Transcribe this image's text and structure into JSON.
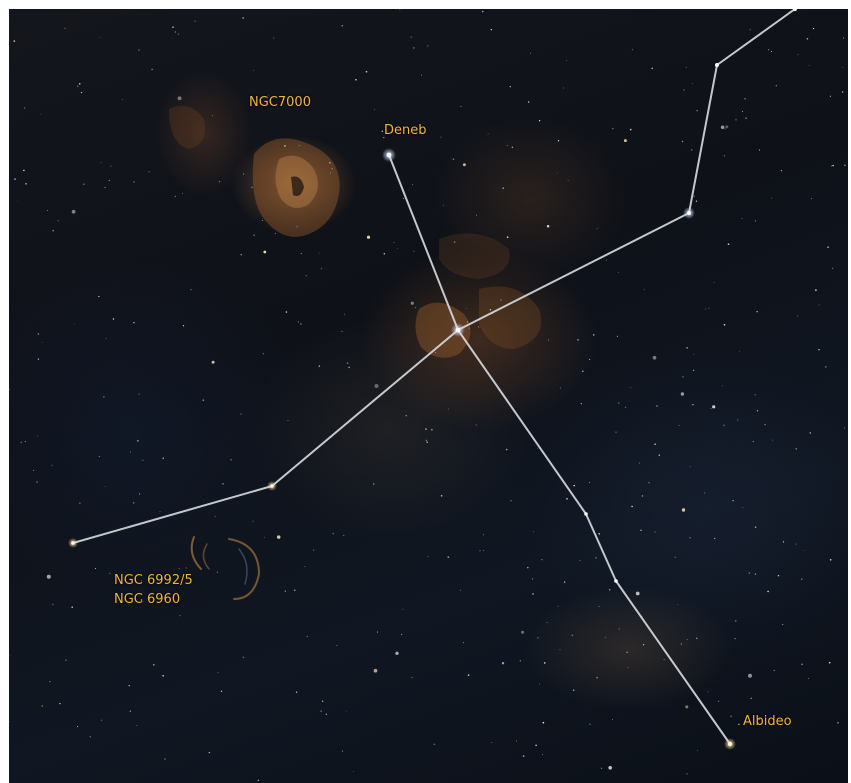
{
  "labels": {
    "ngc7000": "NGC7000",
    "deneb": "Deneb",
    "ngc6992": "NGC 6992/5",
    "ngc6960": "NGC 6960",
    "albideo": "Albideo"
  },
  "colors": {
    "label": "#f0b53a",
    "line": "#d8dbe0",
    "star": "#ffffff",
    "nebula": "#b06a30"
  }
}
